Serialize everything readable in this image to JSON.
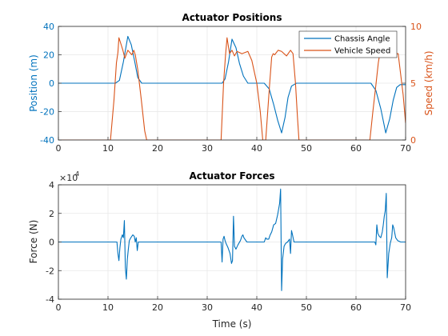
{
  "colors": {
    "series_blue": "#0072BD",
    "series_orange": "#D95319",
    "axis": "#262626",
    "grid": "#e6e6e6"
  },
  "chart_data": [
    {
      "type": "line",
      "title": "Actuator Positions",
      "xlabel": "",
      "ylabel_left": "Position (m)",
      "ylabel_right": "Speed (km/h)",
      "xlim": [
        0,
        70
      ],
      "ylim_left": [
        -40,
        40
      ],
      "ylim_right": [
        0,
        10
      ],
      "xticks": [
        "0",
        "10",
        "20",
        "30",
        "40",
        "50",
        "60",
        "70"
      ],
      "yticks_left": [
        "-40",
        "-20",
        "0",
        "20",
        "40"
      ],
      "yticks_right": [
        "0",
        "5",
        "10"
      ],
      "grid": true,
      "legend_position": "top-right",
      "series": [
        {
          "name": "Chassis Angle",
          "axis": "left",
          "x": [
            0,
            11.5,
            12.3,
            13.1,
            14.0,
            14.7,
            15.4,
            16.0,
            16.8,
            33,
            33.6,
            34.3,
            35.0,
            35.8,
            36.5,
            37.3,
            38.2,
            41.5,
            42.5,
            43.4,
            44.2,
            45.0,
            45.7,
            46.3,
            47.0,
            48.0,
            63.0,
            64.0,
            65.0,
            66.0,
            66.8,
            67.5,
            68.2,
            68.9,
            70.0
          ],
          "y": [
            0,
            0,
            2,
            15,
            33,
            27,
            15,
            4,
            0,
            0,
            3,
            15,
            31,
            25,
            14,
            5,
            0,
            0,
            -4,
            -15,
            -26,
            -35,
            -24,
            -10,
            -2,
            0,
            0,
            -5,
            -18,
            -35,
            -25,
            -12,
            -3,
            -1,
            -1
          ]
        },
        {
          "name": "Vehicle Speed",
          "axis": "right",
          "x": [
            0,
            10.5,
            11.2,
            11.7,
            12.0,
            12.2,
            12.5,
            13.0,
            13.4,
            14.0,
            14.8,
            15.2,
            15.5,
            16.0,
            16.7,
            17.4,
            17.8,
            32.8,
            33.3,
            33.7,
            34.0,
            34.5,
            35.0,
            35.5,
            36.0,
            37.0,
            38.2,
            39.0,
            40.0,
            40.7,
            41.2,
            41.8,
            42.2,
            42.6,
            43.0,
            43.3,
            43.6,
            44.3,
            45.0,
            46.0,
            46.8,
            47.3,
            47.8,
            48.2,
            48.5,
            62.8,
            63.4,
            64.0,
            64.5,
            64.8,
            65.1,
            65.4,
            65.8,
            66.5,
            67.5,
            68.5,
            69.5,
            70.0
          ],
          "y": [
            0,
            0,
            3.5,
            6.8,
            7.7,
            9,
            8.6,
            7.9,
            7.2,
            7.9,
            7.5,
            7.9,
            7.5,
            6.2,
            3.6,
            0.8,
            0,
            0,
            5,
            7.5,
            9,
            7.6,
            7.9,
            7.4,
            7.8,
            7.6,
            7.8,
            7,
            5,
            2.5,
            0,
            0,
            2.5,
            5,
            7.3,
            7.6,
            7.5,
            7.9,
            7.8,
            7.4,
            7.9,
            7.6,
            5,
            2,
            0,
            0,
            2.5,
            4.8,
            6.8,
            7.6,
            7.6,
            9,
            7.7,
            7.9,
            7.6,
            7.6,
            4,
            1.5
          ]
        }
      ]
    },
    {
      "type": "line",
      "title": "Actuator Forces",
      "xlabel": "Time (s)",
      "ylabel": "Force (N)",
      "y_exponent_label": "×10",
      "y_exponent_power": "4",
      "xlim": [
        0,
        70
      ],
      "ylim": [
        -4,
        4
      ],
      "xticks": [
        "0",
        "10",
        "20",
        "30",
        "40",
        "50",
        "60",
        "70"
      ],
      "yticks": [
        "-4",
        "-2",
        "0",
        "2",
        "4"
      ],
      "grid": true,
      "series": [
        {
          "name": "",
          "x": [
            0,
            11.8,
            12.0,
            12.2,
            12.4,
            12.6,
            12.9,
            13.1,
            13.3,
            13.5,
            13.7,
            13.9,
            14.1,
            14.3,
            14.6,
            15.0,
            15.3,
            15.5,
            15.7,
            15.9,
            16.1,
            16.5,
            32.8,
            33.0,
            33.2,
            33.4,
            33.6,
            33.8,
            34.2,
            34.6,
            34.9,
            35.1,
            35.3,
            35.5,
            35.8,
            36.2,
            36.7,
            37.0,
            37.2,
            37.4,
            38.0,
            41.5,
            41.8,
            42.0,
            42.4,
            42.7,
            43.0,
            43.4,
            43.8,
            44.2,
            44.6,
            44.8,
            45.0,
            45.2,
            45.5,
            45.8,
            46.2,
            46.6,
            46.8,
            47.0,
            47.2,
            47.5,
            63.8,
            64.0,
            64.2,
            64.4,
            64.7,
            65.0,
            65.3,
            65.5,
            65.7,
            65.9,
            66.1,
            66.3,
            66.6,
            66.9,
            67.2,
            67.4,
            67.6,
            68.0,
            68.4,
            69.0,
            70.0
          ],
          "y": [
            0,
            0,
            -0.8,
            -1.3,
            -0.4,
            0.2,
            0.5,
            0.3,
            1.5,
            -1.8,
            -2.6,
            -1.2,
            -0.5,
            0.1,
            0.3,
            0.5,
            0.4,
            0,
            0.3,
            -0.6,
            0,
            0,
            0,
            -1.4,
            0.2,
            0.4,
            0.1,
            -0.1,
            -0.4,
            -0.8,
            -1.5,
            -1.3,
            1.8,
            -0.3,
            -0.5,
            -0.2,
            0.1,
            0.4,
            0.5,
            0.3,
            0,
            0,
            0.3,
            0.2,
            0.2,
            0.5,
            0.7,
            1.2,
            1.3,
            1.9,
            2.7,
            3.7,
            -3.4,
            -1.2,
            -0.3,
            -0.1,
            0,
            0.2,
            -0.8,
            0.8,
            0.5,
            0,
            0,
            -0.2,
            1.2,
            0.6,
            0.4,
            0.3,
            0.7,
            1.2,
            1.8,
            2.2,
            3.4,
            -2.5,
            -0.8,
            -0.1,
            0.3,
            1.2,
            1.0,
            0.3,
            0.1,
            0,
            0
          ]
        }
      ]
    }
  ]
}
